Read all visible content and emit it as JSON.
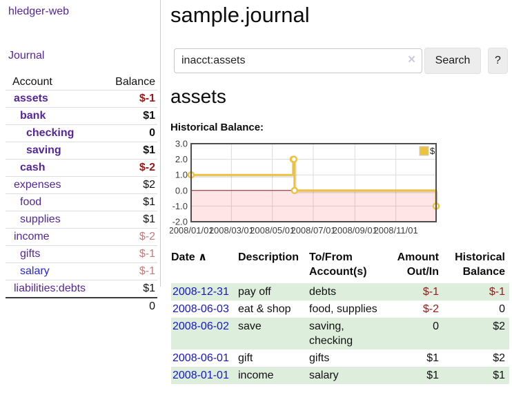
{
  "sidebar": {
    "app_title": "hledger-web",
    "journal_label": "Journal",
    "table": {
      "account_header": "Account",
      "balance_header": "Balance"
    },
    "accounts": [
      {
        "label": "assets",
        "depth": 1,
        "bold": true,
        "balance": "$-1",
        "balance_class": "neg"
      },
      {
        "label": "bank",
        "depth": 2,
        "bold": true,
        "balance": "$1",
        "balance_class": ""
      },
      {
        "label": "checking",
        "depth": 3,
        "bold": true,
        "balance": "0",
        "balance_class": ""
      },
      {
        "label": "saving",
        "depth": 3,
        "bold": true,
        "balance": "$1",
        "balance_class": ""
      },
      {
        "label": "cash",
        "depth": 2,
        "bold": true,
        "balance": "$-2",
        "balance_class": "neg"
      },
      {
        "label": "expenses",
        "depth": 1,
        "bold": false,
        "balance": "$2",
        "balance_class": ""
      },
      {
        "label": "food",
        "depth": 2,
        "bold": false,
        "balance": "$1",
        "balance_class": ""
      },
      {
        "label": "supplies",
        "depth": 2,
        "bold": false,
        "balance": "$1",
        "balance_class": ""
      },
      {
        "label": "income",
        "depth": 1,
        "bold": false,
        "balance": "$-2",
        "balance_class": "negmuted"
      },
      {
        "label": "gifts",
        "depth": 2,
        "bold": false,
        "balance": "$-1",
        "balance_class": "negmuted"
      },
      {
        "label": "salary",
        "depth": 2,
        "bold": false,
        "balance": "$-1",
        "balance_class": "negmuted",
        "link_variant": "blue"
      },
      {
        "label": "liabilities:debts",
        "depth": 1,
        "bold": false,
        "balance": "$1",
        "balance_class": ""
      }
    ],
    "total": "0"
  },
  "main": {
    "title": "sample.journal",
    "search": {
      "value": "inacct:assets",
      "clear_icon": "×",
      "button_label": "Search",
      "help_label": "?"
    },
    "account_heading": "assets",
    "chart_label": "Historical Balance:"
  },
  "chart_data": {
    "type": "line",
    "step": true,
    "title": "Historical Balance:",
    "x_start": "2008-01-01",
    "x_end": "2008-12-31",
    "ylim": [
      -2,
      3
    ],
    "yticks": [
      {
        "v": 3,
        "label": "3.0"
      },
      {
        "v": 2,
        "label": "2.0"
      },
      {
        "v": 1,
        "label": "1.0"
      },
      {
        "v": 0,
        "label": "0.0"
      },
      {
        "v": -1,
        "label": "-1.0"
      },
      {
        "v": -2,
        "label": "-2.0"
      }
    ],
    "xticks": [
      {
        "date": "2008-01-01",
        "label": "2008/01/01"
      },
      {
        "date": "2008-03-01",
        "label": "2008/03/01"
      },
      {
        "date": "2008-05-01",
        "label": "2008/05/01"
      },
      {
        "date": "2008-07-01",
        "label": "2008/07/01"
      },
      {
        "date": "2008-09-01",
        "label": "2008/09/01"
      },
      {
        "date": "2008-11-01",
        "label": "2008/11/01"
      }
    ],
    "series": [
      {
        "name": "$",
        "color": "#edc240",
        "points": [
          [
            "2008-01-01",
            1
          ],
          [
            "2008-06-01",
            2
          ],
          [
            "2008-06-02",
            2
          ],
          [
            "2008-06-03",
            0
          ],
          [
            "2008-12-31",
            -1
          ]
        ]
      }
    ],
    "legend_position": "top-right",
    "grid_color": "#dcdcdc",
    "border_color": "#4d4d4d",
    "zero_line_color": "#8b1a1a",
    "negative_fill": "rgba(255,0,0,0.10)",
    "tick_label_color": "#3c3c3c"
  },
  "register": {
    "headers": {
      "date": "Date",
      "sort_icon": "∧",
      "description": "Description",
      "accounts": [
        "To/From",
        "Account(s)"
      ],
      "amount": [
        "Amount",
        "Out/In"
      ],
      "balance": [
        "Historical",
        "Balance"
      ]
    },
    "rows": [
      {
        "date": "2008-12-31",
        "description": "pay off",
        "accounts": "debts",
        "amount": "$-1",
        "amount_neg": true,
        "balance": "$-1",
        "balance_neg": true,
        "shaded": true
      },
      {
        "date": "2008-06-03",
        "description": "eat & shop",
        "accounts": "food, supplies",
        "amount": "$-2",
        "amount_neg": true,
        "balance": "0",
        "balance_neg": false,
        "shaded": false
      },
      {
        "date": "2008-06-02",
        "description": "save",
        "accounts": "saving, checking",
        "amount": "0",
        "amount_neg": false,
        "balance": "$2",
        "balance_neg": false,
        "shaded": true
      },
      {
        "date": "2008-06-01",
        "description": "gift",
        "accounts": "gifts",
        "amount": "$1",
        "amount_neg": false,
        "balance": "$2",
        "balance_neg": false,
        "shaded": false
      },
      {
        "date": "2008-01-01",
        "description": "income",
        "accounts": "salary",
        "amount": "$1",
        "amount_neg": false,
        "balance": "$1",
        "balance_neg": false,
        "shaded": true
      }
    ]
  },
  "colors": {
    "link_purple": "#54269e",
    "link_blue": "#1515d0",
    "negative_strong": "#9e1616",
    "negative_muted": "#c77a7a",
    "shaded_row_green": "#ddeedd",
    "chart_series_yellow": "#edc240",
    "button_gray": "#ededed"
  }
}
